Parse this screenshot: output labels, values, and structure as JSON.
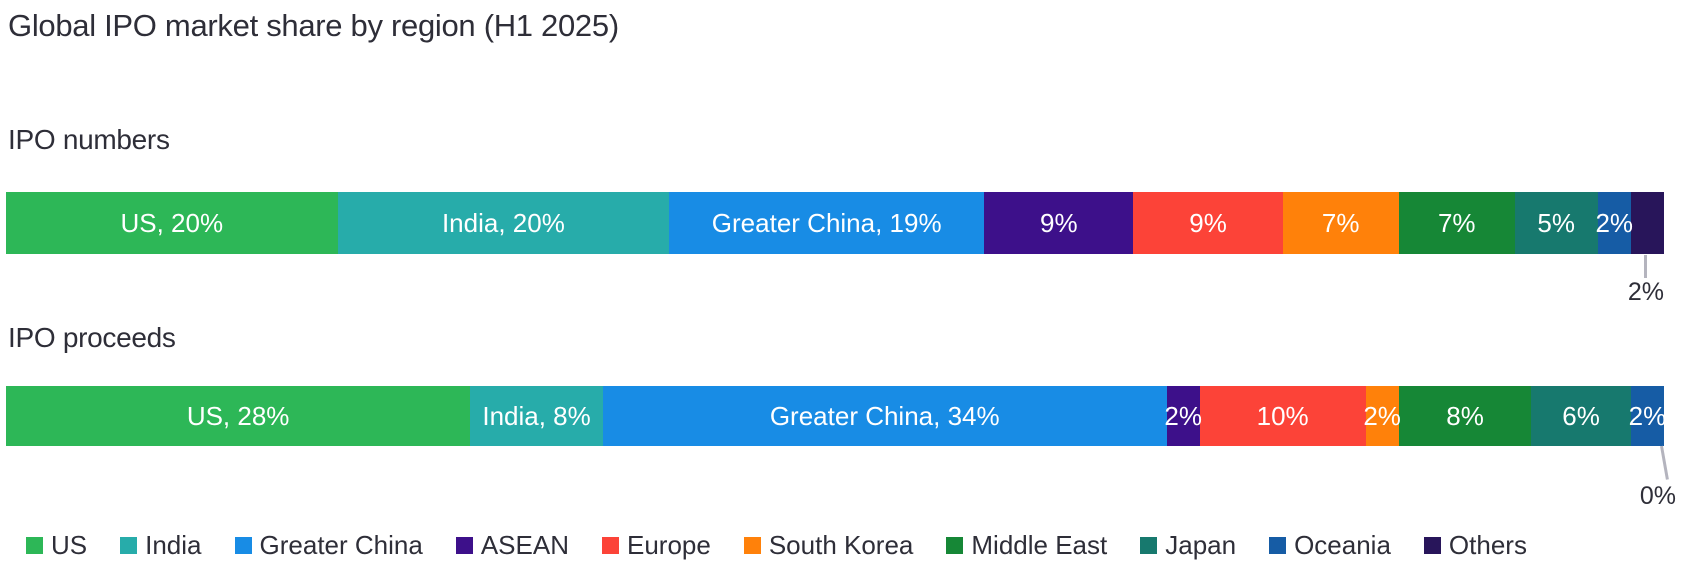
{
  "title": "Global IPO market share by region (H1 2025)",
  "colors": {
    "text": "#2E2E38",
    "background": "#FFFFFF",
    "leader_line": "#B4B4BE",
    "bar_label": "#FFFFFF"
  },
  "regions": [
    {
      "name": "US",
      "color": "#2DB757"
    },
    {
      "name": "India",
      "color": "#27ACAA"
    },
    {
      "name": "Greater China",
      "color": "#188CE5"
    },
    {
      "name": "ASEAN",
      "color": "#3D108A"
    },
    {
      "name": "Europe",
      "color": "#FC4338"
    },
    {
      "name": "South Korea",
      "color": "#FF810A"
    },
    {
      "name": "Middle East",
      "color": "#168736"
    },
    {
      "name": "Japan",
      "color": "#17796E"
    },
    {
      "name": "Oceania",
      "color": "#165CA5"
    },
    {
      "name": "Others",
      "color": "#28155A"
    }
  ],
  "chart_data": [
    {
      "type": "bar",
      "variant": "horizontal-stacked-100",
      "title": "IPO numbers",
      "unit": "%",
      "categories": [
        "US",
        "India",
        "Greater China",
        "ASEAN",
        "Europe",
        "South Korea",
        "Middle East",
        "Japan",
        "Oceania",
        "Others"
      ],
      "values": [
        20,
        20,
        19,
        9,
        9,
        7,
        7,
        5,
        2,
        2
      ],
      "segment_labels": [
        "US, 20%",
        "India, 20%",
        "Greater China, 19%",
        "9%",
        "9%",
        "7%",
        "7%",
        "5%",
        "2%",
        ""
      ],
      "callout": {
        "category": "Others",
        "label": "2%"
      }
    },
    {
      "type": "bar",
      "variant": "horizontal-stacked-100",
      "title": "IPO proceeds",
      "unit": "%",
      "categories": [
        "US",
        "India",
        "Greater China",
        "ASEAN",
        "Europe",
        "South Korea",
        "Middle East",
        "Japan",
        "Oceania",
        "Others"
      ],
      "values": [
        28,
        8,
        34,
        2,
        10,
        2,
        8,
        6,
        2,
        0
      ],
      "segment_labels": [
        "US, 28%",
        "India, 8%",
        "Greater China, 34%",
        "2%",
        "10%",
        "2%",
        "8%",
        "6%",
        "2%",
        ""
      ],
      "callout": {
        "category": "Others",
        "label": "0%"
      }
    }
  ],
  "legend": {
    "items": [
      "US",
      "India",
      "Greater China",
      "ASEAN",
      "Europe",
      "South Korea",
      "Middle East",
      "Japan",
      "Oceania",
      "Others"
    ]
  }
}
